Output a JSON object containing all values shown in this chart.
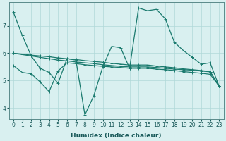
{
  "xlabel": "Humidex (Indice chaleur)",
  "bg_color": "#d9f0f0",
  "grid_color": "#b0d8d8",
  "line_color": "#1a7a6e",
  "x_ticks": [
    0,
    1,
    2,
    3,
    4,
    5,
    6,
    7,
    8,
    9,
    10,
    11,
    12,
    13,
    14,
    15,
    16,
    17,
    18,
    19,
    20,
    21,
    22,
    23
  ],
  "y_ticks": [
    4,
    5,
    6,
    7
  ],
  "ylim": [
    3.6,
    7.85
  ],
  "xlim": [
    -0.5,
    23.5
  ],
  "series": [
    [
      7.5,
      6.65,
      5.9,
      5.45,
      5.3,
      4.9,
      5.8,
      5.75,
      3.75,
      4.45,
      5.5,
      6.25,
      6.2,
      5.45,
      7.65,
      7.55,
      7.6,
      7.25,
      6.4,
      6.1,
      5.85,
      5.6,
      5.65,
      4.8
    ],
    [
      6.0,
      5.95,
      5.9,
      5.85,
      5.8,
      5.75,
      5.72,
      5.68,
      5.65,
      5.62,
      5.58,
      5.55,
      5.52,
      5.5,
      5.5,
      5.5,
      5.48,
      5.45,
      5.42,
      5.4,
      5.38,
      5.35,
      5.32,
      4.8
    ],
    [
      6.0,
      5.97,
      5.93,
      5.9,
      5.87,
      5.83,
      5.8,
      5.77,
      5.73,
      5.7,
      5.67,
      5.63,
      5.6,
      5.57,
      5.57,
      5.57,
      5.53,
      5.5,
      5.47,
      5.43,
      5.4,
      5.37,
      5.33,
      4.8
    ],
    [
      5.55,
      5.3,
      5.25,
      4.95,
      4.6,
      5.35,
      5.65,
      5.62,
      5.58,
      5.55,
      5.52,
      5.5,
      5.48,
      5.45,
      5.45,
      5.45,
      5.42,
      5.4,
      5.37,
      5.33,
      5.3,
      5.27,
      5.23,
      4.8
    ]
  ]
}
